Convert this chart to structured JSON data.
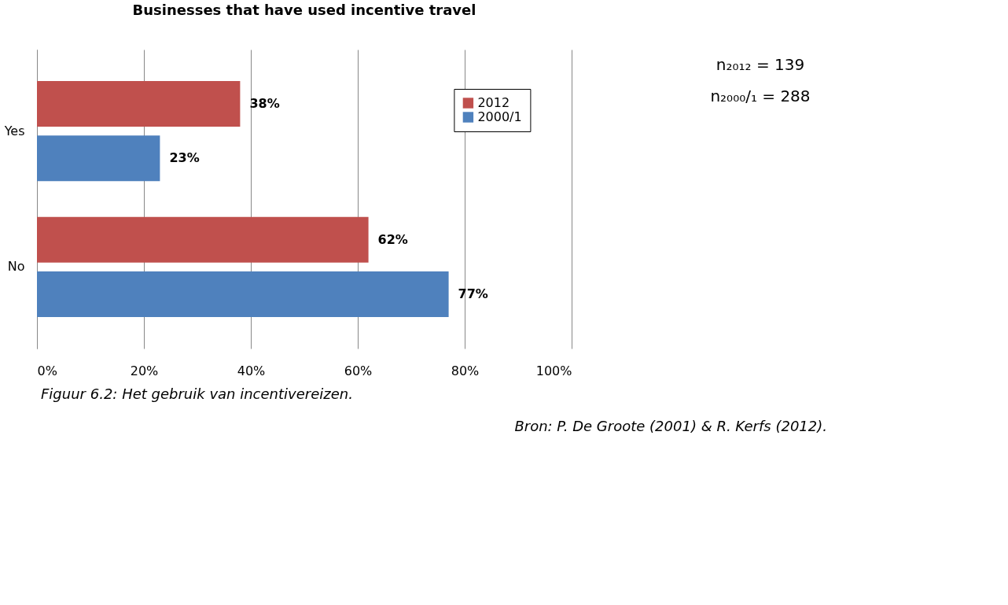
{
  "chart_data": {
    "type": "bar",
    "orientation": "horizontal",
    "title": "Businesses that have used incentive travel",
    "categories": [
      "Yes",
      "No"
    ],
    "series": [
      {
        "name": "2012",
        "color": "#c0504d",
        "values": [
          38,
          62
        ],
        "value_labels": [
          "38%",
          "62%"
        ]
      },
      {
        "name": "2000/1",
        "color": "#4f81bd",
        "values": [
          23,
          77
        ],
        "value_labels": [
          "23%",
          "77%"
        ]
      }
    ],
    "xlim": [
      0,
      100
    ],
    "xticks": [
      {
        "value": 0,
        "label": "0%"
      },
      {
        "value": 20,
        "label": "20%"
      },
      {
        "value": 40,
        "label": "40%"
      },
      {
        "value": 60,
        "label": "60%"
      },
      {
        "value": 80,
        "label": "80%"
      },
      {
        "value": 100,
        "label": "100%"
      }
    ],
    "grid": "x",
    "legend": "top right",
    "annotations": [
      "n₂₀₁₂ = 139",
      "n₂₀₀₀/₁ = 288",
      "Figuur 6.2: Het gebruik van incentivereizen.",
      "Bron: P. De Groote (2001) & R. Kerfs (2012)."
    ]
  }
}
